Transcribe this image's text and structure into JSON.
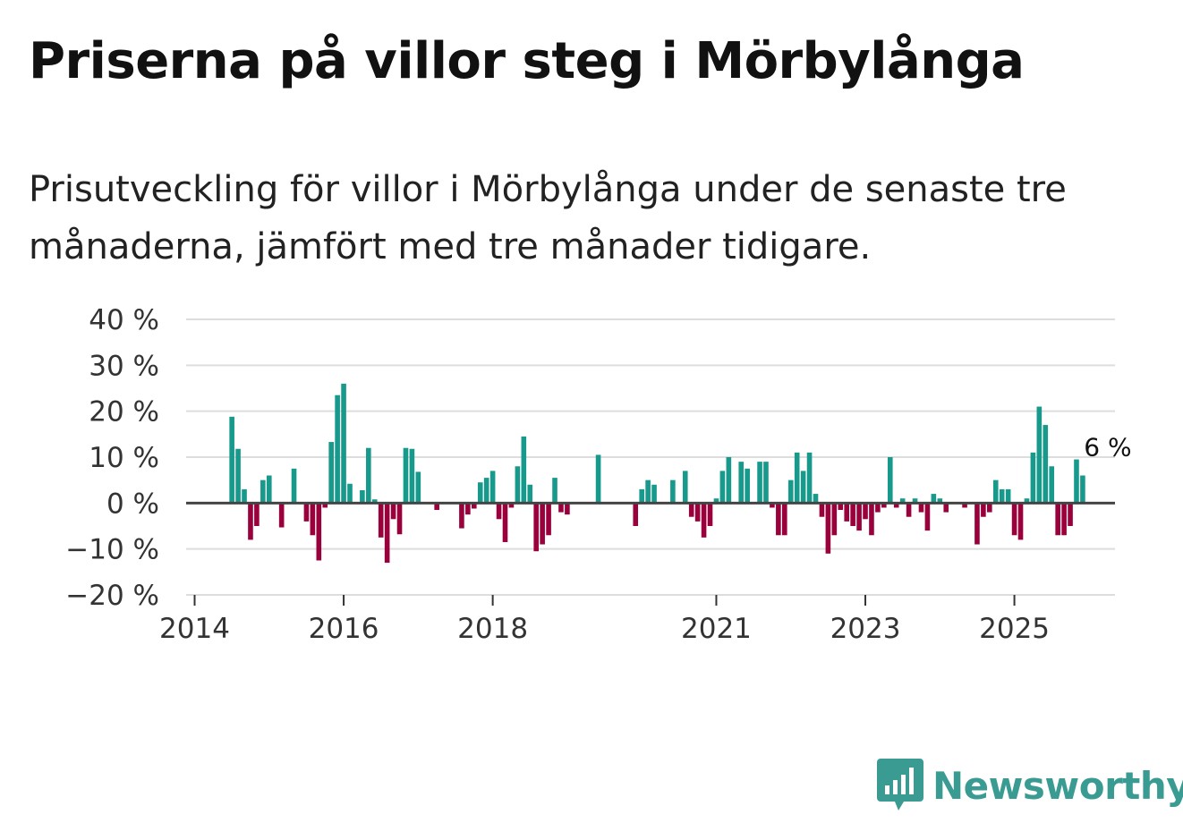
{
  "header": {
    "title": "Priserna på villor steg i Mörbylånga",
    "subtitle": "Prisutveckling för villor i Mörbylånga under de senaste tre månaderna, jämfört med tre månader tidigare."
  },
  "colors": {
    "positive": "#17998c",
    "negative": "#99003c",
    "grid": "#dddddd",
    "zero_line": "#444444",
    "brand": "#3a9b92"
  },
  "brand": {
    "name": "Newsworthy",
    "icon": "newsworthy-bar-chart-icon"
  },
  "chart_data": {
    "type": "bar",
    "title": "Priserna på villor steg i Mörbylånga",
    "xlabel": "",
    "ylabel": "",
    "ylim": [
      -20,
      40
    ],
    "y_ticks": [
      {
        "value": 40,
        "label": "40 %"
      },
      {
        "value": 30,
        "label": "30 %"
      },
      {
        "value": 20,
        "label": "20 %"
      },
      {
        "value": 10,
        "label": "10 %"
      },
      {
        "value": 0,
        "label": "0 %"
      },
      {
        "value": -10,
        "label": "−10 %"
      },
      {
        "value": -20,
        "label": "−20 %"
      }
    ],
    "x_ticks": [
      {
        "index": 0,
        "label": "2014"
      },
      {
        "index": 24,
        "label": "2016"
      },
      {
        "index": 48,
        "label": "2018"
      },
      {
        "index": 84,
        "label": "2021"
      },
      {
        "index": 108,
        "label": "2023"
      },
      {
        "index": 132,
        "label": "2025"
      }
    ],
    "start": "2014-01",
    "frequency": "monthly",
    "values": [
      null,
      null,
      null,
      null,
      null,
      null,
      18.8,
      11.8,
      3.0,
      -8.0,
      -5.0,
      5.0,
      6.0,
      0,
      -5.3,
      0,
      7.5,
      0,
      -4.0,
      -7.0,
      -12.5,
      -1.0,
      13.3,
      23.5,
      26.0,
      4.2,
      0,
      2.8,
      12.0,
      0.8,
      -7.5,
      -13.0,
      -3.5,
      -6.8,
      12.0,
      11.8,
      6.8,
      0,
      0,
      -1.5,
      0,
      0,
      0,
      -5.5,
      -2.5,
      -1.2,
      4.5,
      5.5,
      7.0,
      -3.5,
      -8.5,
      -1.0,
      8.0,
      14.5,
      4.0,
      -10.5,
      -9.0,
      -7.0,
      5.5,
      -2.0,
      -2.5,
      0,
      0,
      0,
      0,
      10.5,
      0,
      0,
      0,
      0,
      0,
      -5.0,
      3.0,
      5.0,
      4.0,
      0,
      0,
      5.0,
      0,
      7.0,
      -3.0,
      -4.0,
      -7.5,
      -5.0,
      1.0,
      7.0,
      10.0,
      0,
      9.0,
      7.5,
      0,
      9.0,
      9.0,
      -1.0,
      -7.0,
      -7.0,
      5.0,
      11.0,
      7.0,
      11.0,
      2.0,
      -3.0,
      -11.0,
      -7.0,
      -1.5,
      -4.0,
      -5.0,
      -6.0,
      -3.5,
      -7.0,
      -2.0,
      -1.0,
      10.0,
      -1.0,
      1.0,
      -3.0,
      1.0,
      -2.0,
      -6.0,
      2.0,
      1.0,
      -2.0,
      0,
      0,
      -1.0,
      0,
      -9.0,
      -3.0,
      -2.0,
      5.0,
      3.0,
      3.0,
      -7.0,
      -8.0,
      1.0,
      11.0,
      21.0,
      17.0,
      8.0,
      -7.0,
      -7.0,
      -5.0,
      9.5,
      6.0
    ],
    "annotation": {
      "index": 143,
      "label": "6 %"
    },
    "legend": "none",
    "grid": true
  }
}
